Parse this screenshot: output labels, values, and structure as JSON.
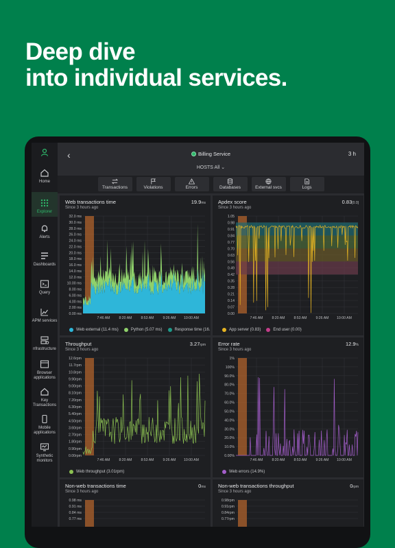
{
  "headline": {
    "line1": "Deep dive",
    "line2": "into individual services."
  },
  "header": {
    "service": "Billing Service",
    "time_range": "3 h",
    "hosts": "HOSTS All"
  },
  "tabs": [
    {
      "label": "Transactions",
      "icon": "arrows-icon"
    },
    {
      "label": "Violations",
      "icon": "flag-icon"
    },
    {
      "label": "Errors",
      "icon": "warning-icon"
    },
    {
      "label": "Databases",
      "icon": "database-icon"
    },
    {
      "label": "External svcs",
      "icon": "globe-icon"
    },
    {
      "label": "Logs",
      "icon": "document-icon"
    }
  ],
  "sidebar": {
    "items": [
      {
        "label": "Home",
        "icon": "home-icon"
      },
      {
        "label": "Explorer",
        "icon": "grid-icon"
      },
      {
        "label": "Alerts",
        "icon": "bell-icon"
      },
      {
        "label": "Dashboards",
        "icon": "dashboard-icon"
      },
      {
        "label": "Query",
        "icon": "terminal-icon"
      },
      {
        "label": "APM services",
        "icon": "chart-icon"
      },
      {
        "label": "nfrastructure",
        "icon": "server-icon"
      },
      {
        "label": "Browser applications",
        "icon": "browser-icon"
      },
      {
        "label": "Key Transactions",
        "icon": "home-key-icon"
      },
      {
        "label": "Mobile applications",
        "icon": "mobile-icon"
      },
      {
        "label": "Synthetic monitors",
        "icon": "monitor-icon"
      }
    ]
  },
  "colors": {
    "accent": "#00804c",
    "web_external": "#2eb6d9",
    "python": "#8fd16b",
    "response_time": "#1e9a8a",
    "app_server": "#e6b422",
    "end_user": "#c43d8a",
    "throughput": "#8cc152",
    "errors": "#a45ecb",
    "highlight": "#b0632c"
  },
  "panels": {
    "web_transactions": {
      "title": "Web transactions time",
      "subtitle": "Since 3 hours ago",
      "value": "19.9",
      "unit": "ms",
      "ticks": [
        "32.0 ms",
        "30.0 ms",
        "28.0 ms",
        "26.0 ms",
        "24.0 ms",
        "22.0 ms",
        "20.0 ms",
        "18.0 ms",
        "16.0 ms",
        "14.0 ms",
        "12.0 ms",
        "10.00 ms",
        "8.00 ms",
        "6.00 ms",
        "4.00 ms",
        "2.00 ms",
        "0.00 ms"
      ],
      "legend": [
        "Web external (11.4 ms)",
        "Python (5.07 ms)",
        "Response time (16."
      ]
    },
    "apdex": {
      "title": "Apdex score",
      "subtitle": "Since 3 hours ago",
      "value": "0.83",
      "unit": "[0.0]",
      "ticks": [
        "1.05",
        "0.98",
        "0.91",
        "0.84",
        "0.77",
        "0.70",
        "0.63",
        "0.56",
        "0.49",
        "0.42",
        "0.35",
        "0.28",
        "0.21",
        "0.14",
        "0.07",
        "0.00"
      ],
      "legend": [
        "App server (0.83)",
        "End user (0.00)"
      ]
    },
    "throughput": {
      "title": "Throughput",
      "subtitle": "Since 3 hours ago",
      "value": "3.27",
      "unit": "rpm",
      "ticks": [
        "12.6rpm",
        "11.7rpm",
        "10.8rpm",
        "9.90rpm",
        "9.00rpm",
        "8.10rpm",
        "7.20rpm",
        "6.30rpm",
        "5.40rpm",
        "4.50rpm",
        "3.60rpm",
        "2.70rpm",
        "1.80rpm",
        "0.90rpm",
        "0.00rpm"
      ],
      "legend": [
        "Web throughput (3.01rpm)"
      ]
    },
    "error_rate": {
      "title": "Error rate",
      "subtitle": "Since 3 hours ago",
      "value": "12.9",
      "unit": "%",
      "ticks": [
        "1%",
        "100%",
        "90.0%",
        "80.0%",
        "70.0%",
        "60.0%",
        "50.0%",
        "40.0%",
        "30.0%",
        "20.0%",
        "10.0%",
        "0.00%"
      ],
      "legend": [
        "Web errors (14.9%)"
      ]
    },
    "non_web_time": {
      "title": "Non-web transactions time",
      "subtitle": "Since 3 hours ago",
      "value": "0",
      "unit": "ms",
      "ticks": [
        "0.98 ms",
        "0.91 ms",
        "0.84 ms",
        "0.77 ms"
      ]
    },
    "non_web_throughput": {
      "title": "Non-web transactions throughput",
      "subtitle": "Since 3 hours ago",
      "value": "0",
      "unit": "rpm",
      "ticks": [
        "0.98rpm",
        "0.91rpm",
        "0.84rpm",
        "0.77rpm"
      ]
    }
  },
  "x_ticks": [
    "7:46 AM",
    "8:20 AM",
    "8:53 AM",
    "9:26 AM",
    "10:00 AM"
  ]
}
